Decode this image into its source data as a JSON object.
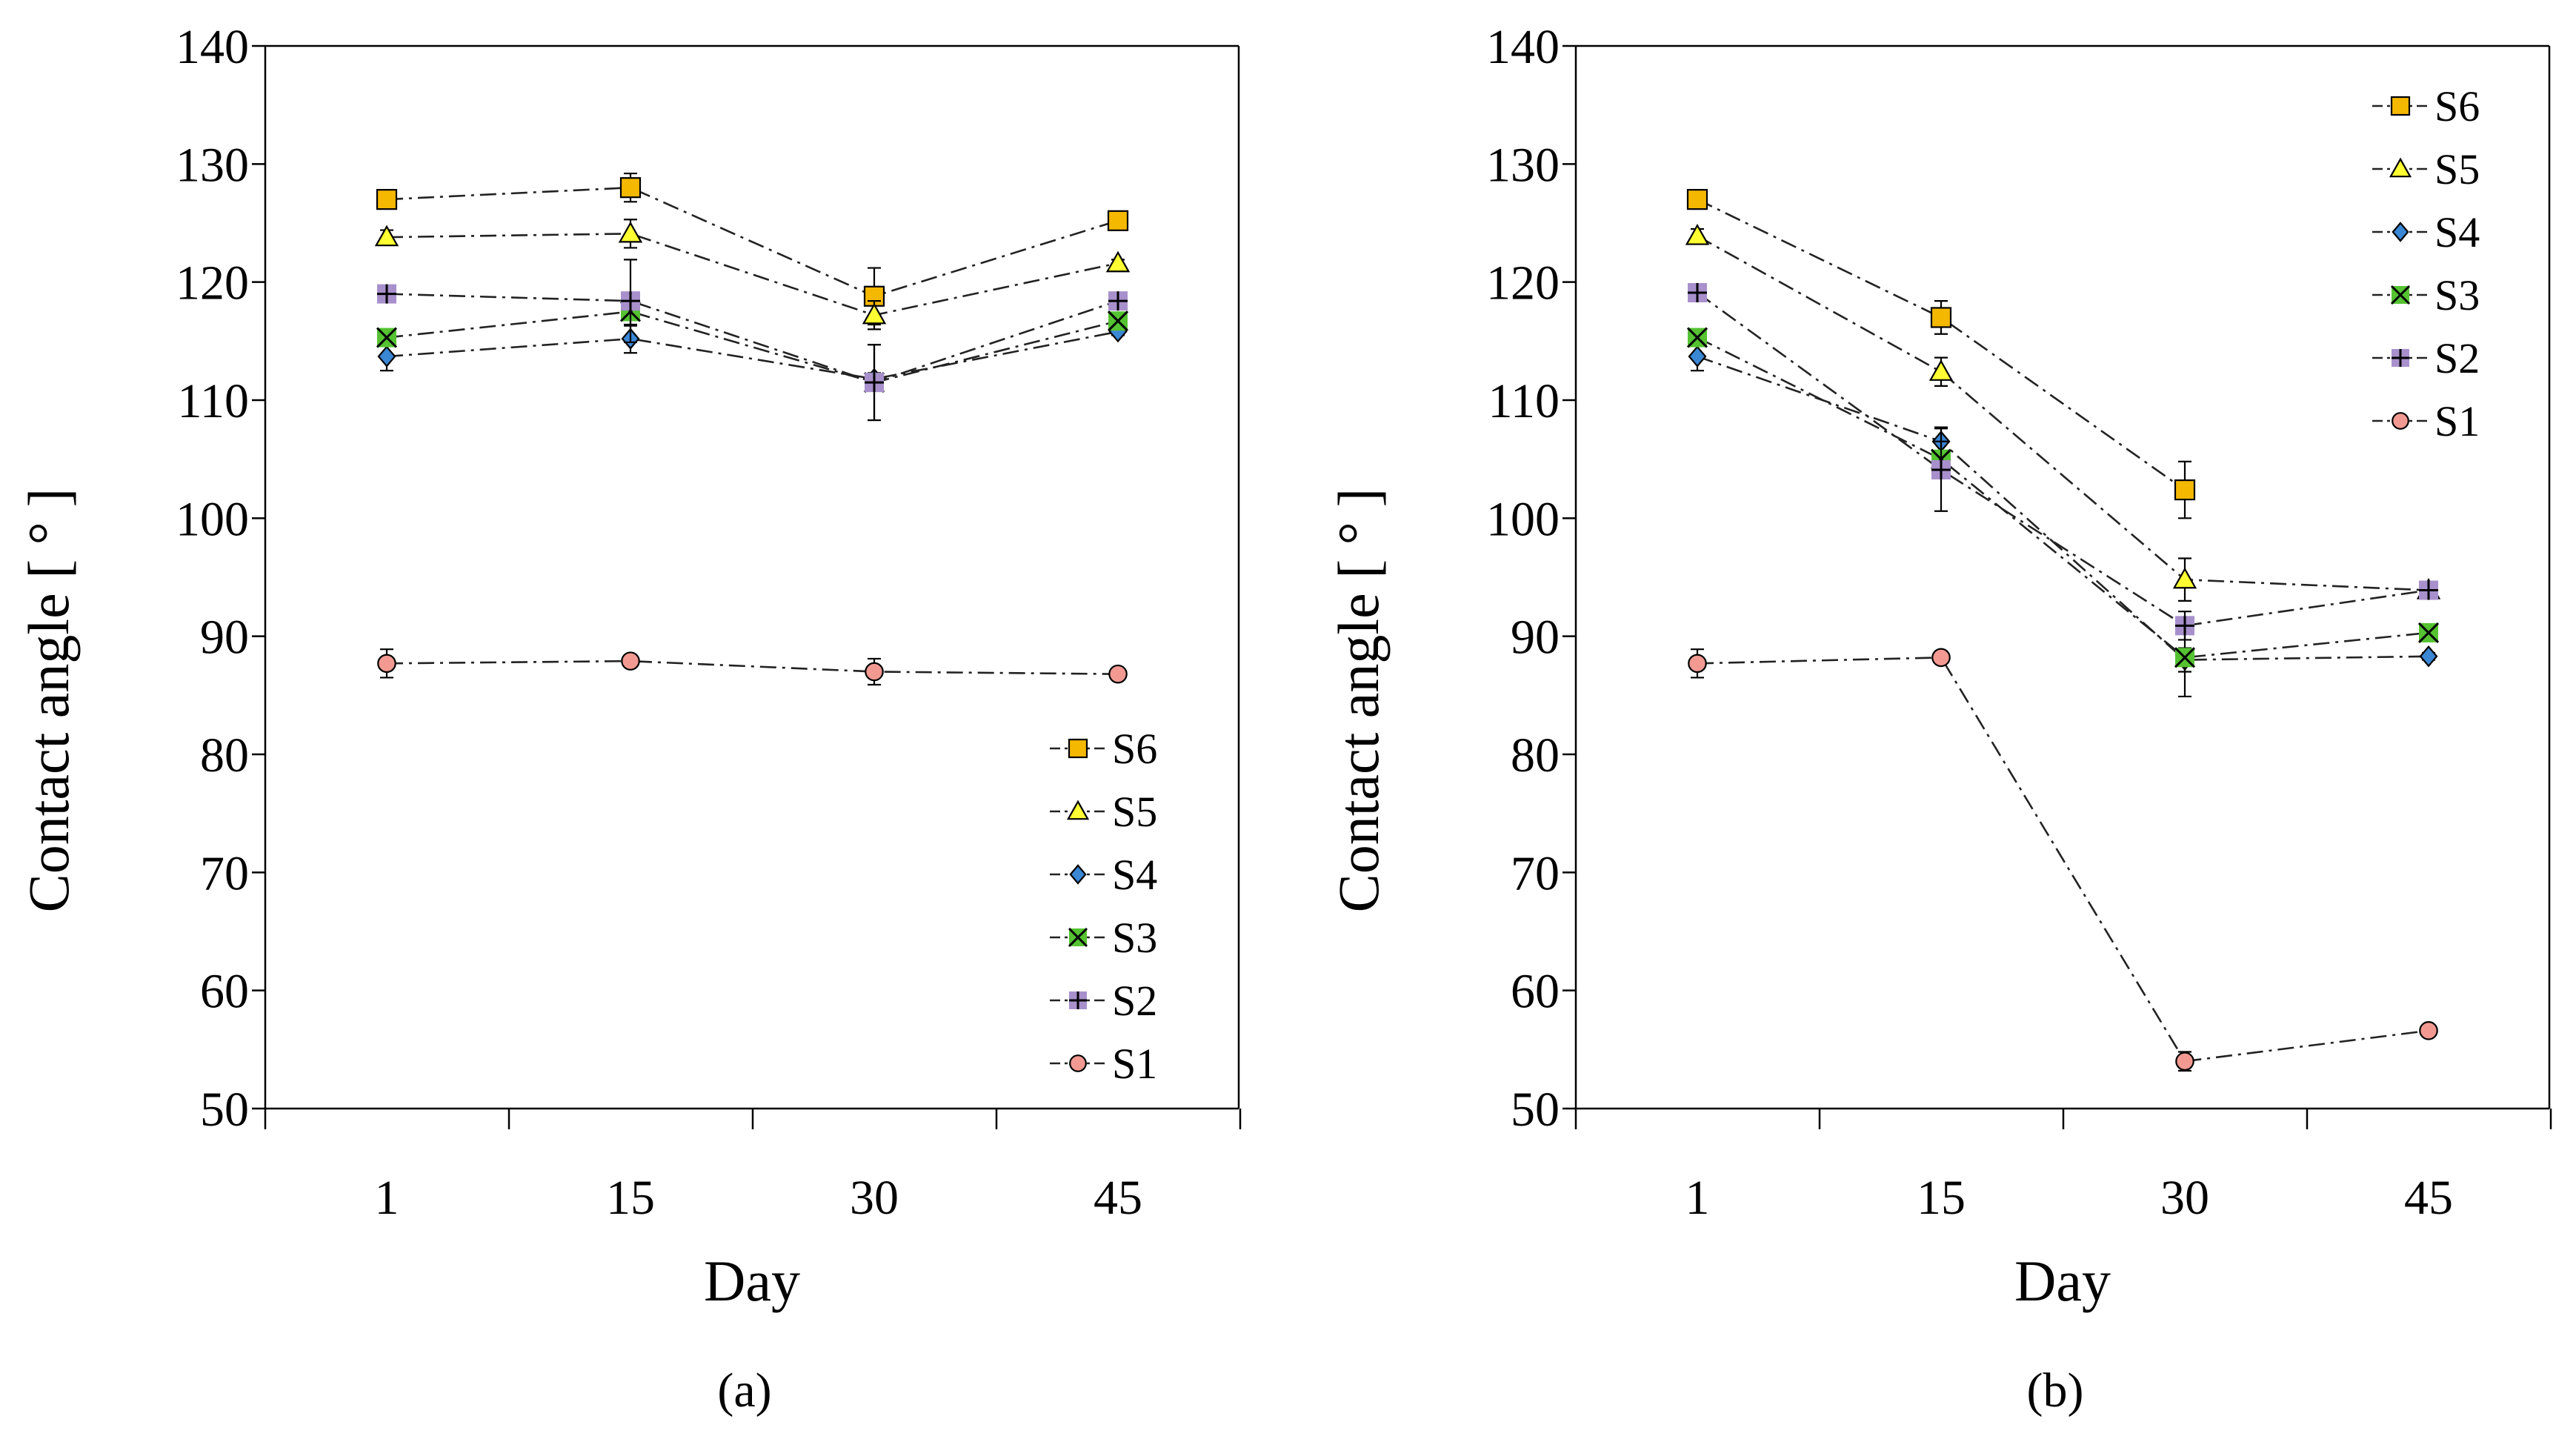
{
  "charts": [
    {
      "caption": "(a)",
      "chart_data": {
        "type": "line",
        "xlabel": "Day",
        "ylabel": "Contact angle [ ° ]",
        "categories": [
          "1",
          "15",
          "30",
          "45"
        ],
        "ylim": [
          50,
          140
        ],
        "yticks": [
          "50",
          "60",
          "70",
          "80",
          "90",
          "100",
          "110",
          "120",
          "130",
          "140"
        ],
        "legend_position": "bottom-right",
        "series": [
          {
            "name": "S6",
            "marker": "square",
            "color": "#F5B800",
            "values": [
              127.0,
              128.0,
              118.8,
              125.2
            ],
            "errors": [
              0.8,
              1.2,
              2.4,
              0.3
            ]
          },
          {
            "name": "S5",
            "marker": "triangle",
            "color": "#FFFF33",
            "values": [
              123.8,
              124.1,
              117.2,
              121.6
            ],
            "errors": [
              0.6,
              1.2,
              1.2,
              0.3
            ]
          },
          {
            "name": "S4",
            "marker": "diamond",
            "color": "#3A87D4",
            "values": [
              113.7,
              115.2,
              111.8,
              115.8
            ],
            "errors": [
              1.2,
              1.2,
              0.5,
              0.3
            ]
          },
          {
            "name": "S3",
            "marker": "x",
            "color": "#55C232",
            "values": [
              115.3,
              117.5,
              111.5,
              116.7
            ],
            "errors": [
              0.6,
              1.2,
              3.2,
              0.3
            ]
          },
          {
            "name": "S2",
            "marker": "plus",
            "color": "#A890CC",
            "values": [
              119.0,
              118.4,
              111.5,
              118.4
            ],
            "errors": [
              0.5,
              3.5,
              3.2,
              0.3
            ]
          },
          {
            "name": "S1",
            "marker": "circle",
            "color": "#F29A92",
            "values": [
              87.7,
              87.9,
              87.0,
              86.8
            ],
            "errors": [
              1.2,
              0.5,
              1.1,
              0.2
            ]
          }
        ]
      }
    },
    {
      "caption": "(b)",
      "chart_data": {
        "type": "line",
        "xlabel": "Day",
        "ylabel": "Contact angle [ ° ]",
        "categories": [
          "1",
          "15",
          "30",
          "45"
        ],
        "ylim": [
          50,
          140
        ],
        "yticks": [
          "50",
          "60",
          "70",
          "80",
          "90",
          "100",
          "110",
          "120",
          "130",
          "140"
        ],
        "legend_position": "top-right",
        "series": [
          {
            "name": "S6",
            "marker": "square",
            "color": "#F5B800",
            "values": [
              127.0,
              117.0,
              102.4,
              null
            ],
            "errors": [
              0.8,
              1.4,
              2.4,
              0
            ]
          },
          {
            "name": "S5",
            "marker": "triangle",
            "color": "#FFFF33",
            "values": [
              123.9,
              112.4,
              94.8,
              93.9
            ],
            "errors": [
              0.6,
              1.2,
              1.8,
              0.3
            ]
          },
          {
            "name": "S4",
            "marker": "diamond",
            "color": "#3A87D4",
            "values": [
              113.7,
              106.5,
              88.0,
              88.3
            ],
            "errors": [
              1.2,
              1.2,
              1.0,
              0.3
            ]
          },
          {
            "name": "S3",
            "marker": "x",
            "color": "#55C232",
            "values": [
              115.3,
              105.0,
              88.2,
              90.3
            ],
            "errors": [
              0.6,
              1.5,
              3.3,
              0.3
            ]
          },
          {
            "name": "S2",
            "marker": "plus",
            "color": "#A890CC",
            "values": [
              119.1,
              104.1,
              90.9,
              93.9
            ],
            "errors": [
              0.5,
              3.5,
              1.2,
              0.3
            ]
          },
          {
            "name": "S1",
            "marker": "circle",
            "color": "#F29A92",
            "values": [
              87.7,
              88.2,
              54.0,
              56.6
            ],
            "errors": [
              1.2,
              0.5,
              0.8,
              0.3
            ]
          }
        ]
      }
    }
  ]
}
